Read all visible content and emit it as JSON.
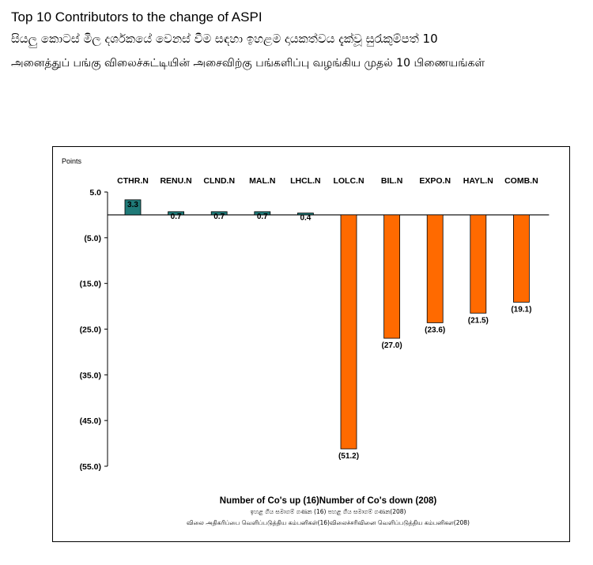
{
  "header": {
    "title_en": "Top 10 Contributors to the change of ASPI",
    "title_si": "සියලු කොටස් මිල දර්ශකයේ වෙනස් වීම සඳහා ඉහළම දායකත්වය දැක්වූ සුරැකුම්පත් 10",
    "title_ta": "அனைத்துப் பங்கு விலைச்சுட்டியின் அசைவிற்கு பங்களிப்பு வழங்கிய முதல் 10 பிணையங்கள்"
  },
  "chart_data": {
    "type": "bar",
    "ylabel": "Points",
    "ylim": [
      -55,
      5
    ],
    "yticks": [
      5,
      -5,
      -15,
      -25,
      -35,
      -45,
      -55
    ],
    "ytick_labels": [
      "5.0",
      "(5.0)",
      "(15.0)",
      "(25.0)",
      "(35.0)",
      "(45.0)",
      "(55.0)"
    ],
    "categories": [
      "CTHR.N",
      "RENU.N",
      "CLND.N",
      "MAL.N",
      "LHCL.N",
      "LOLC.N",
      "BIL.N",
      "EXPO.N",
      "HAYL.N",
      "COMB.N"
    ],
    "values": [
      3.3,
      0.7,
      0.7,
      0.7,
      0.4,
      -51.2,
      -27.0,
      -23.6,
      -21.5,
      -19.1
    ],
    "value_labels": [
      "3.3",
      "0.7",
      "0.7",
      "0.7",
      "0.4",
      "(51.2)",
      "(27.0)",
      "(23.6)",
      "(21.5)",
      "(19.1)"
    ],
    "colors": {
      "positive": "#1f7a78",
      "negative": "#ff6a00",
      "stroke": "#000000"
    },
    "grid": false
  },
  "footer": {
    "line1": "Number of Co's up (16)Number of Co's down  (208)",
    "line2": "ඉහළ ගිය සමාගම් ගණන (16) පහළ ගිය සමාගම් ගණන(208)",
    "line3": "விலை அதிகரிப்பை வெளிப்படுத்திய கம்பனிகள்(16)விலைச்சரிவினை வெளிப்படுத்திய கம்பனிகள(208)"
  }
}
